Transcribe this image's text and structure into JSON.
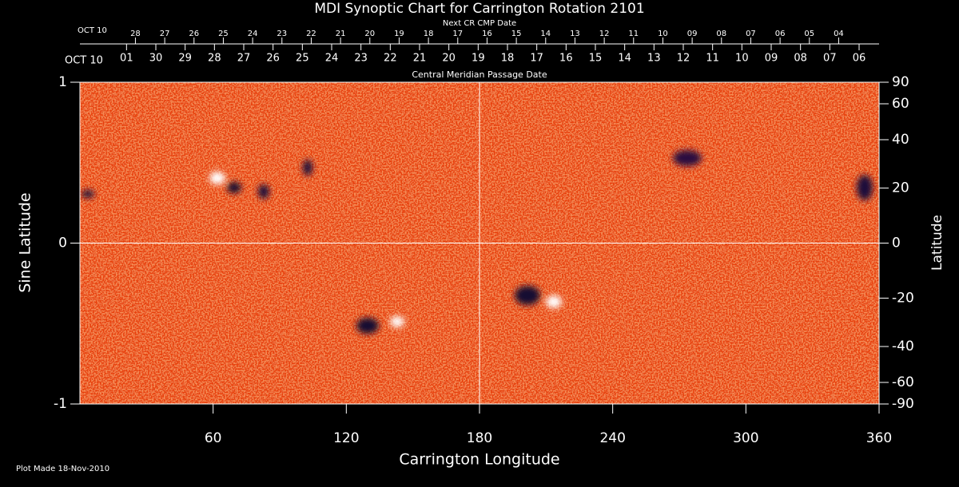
{
  "chart_data": {
    "type": "synoptic-map",
    "title": "MDI Synoptic Chart for Carrington Rotation 2101",
    "xlabel": "Carrington Longitude",
    "ylabel": "Sine Latitude",
    "y2label": "Latitude",
    "footnote": "Plot Made 18-Nov-2010",
    "xlim": [
      0,
      360
    ],
    "xticks": [
      60,
      120,
      180,
      240,
      300,
      360
    ],
    "ylim": [
      -1,
      1
    ],
    "yticks": [
      -1,
      0,
      1
    ],
    "y2lim": [
      -90,
      90
    ],
    "y2scale": "sine",
    "y2ticks": [
      90,
      60,
      40,
      20,
      0,
      -20,
      -40,
      -60,
      -90
    ],
    "grid_lines": {
      "x": [
        180
      ],
      "y": [
        0
      ]
    },
    "top_axes": [
      {
        "title": "Next CR CMP Date",
        "start_label": "OCT 10",
        "color": "#ff5a1e",
        "ticks": [
          {
            "value": 25,
            "label": "28"
          },
          {
            "value": 38.2,
            "label": "27"
          },
          {
            "value": 51.4,
            "label": "26"
          },
          {
            "value": 64.6,
            "label": "25"
          },
          {
            "value": 77.8,
            "label": "24"
          },
          {
            "value": 91,
            "label": "23"
          },
          {
            "value": 104.2,
            "label": "22"
          },
          {
            "value": 117.4,
            "label": "21"
          },
          {
            "value": 130.6,
            "label": "20"
          },
          {
            "value": 143.8,
            "label": "19"
          },
          {
            "value": 157,
            "label": "18"
          },
          {
            "value": 170.2,
            "label": "17"
          },
          {
            "value": 183.4,
            "label": "16"
          },
          {
            "value": 196.6,
            "label": "15"
          },
          {
            "value": 209.8,
            "label": "14"
          },
          {
            "value": 223,
            "label": "13"
          },
          {
            "value": 236.2,
            "label": "12"
          },
          {
            "value": 249.4,
            "label": "11"
          },
          {
            "value": 262.6,
            "label": "10"
          },
          {
            "value": 275.8,
            "label": "09"
          },
          {
            "value": 289,
            "label": "08"
          },
          {
            "value": 302.2,
            "label": "07"
          },
          {
            "value": 315.4,
            "label": "06"
          },
          {
            "value": 328.6,
            "label": "05"
          },
          {
            "value": 341.8,
            "label": "04"
          }
        ]
      },
      {
        "title": "Central Meridian Passage Date",
        "start_label": "OCT 10",
        "color": "#ffffff",
        "ticks": [
          {
            "value": 21,
            "label": "01"
          },
          {
            "value": 34.2,
            "label": "30"
          },
          {
            "value": 47.4,
            "label": "29"
          },
          {
            "value": 60.6,
            "label": "28"
          },
          {
            "value": 73.8,
            "label": "27"
          },
          {
            "value": 87,
            "label": "26"
          },
          {
            "value": 100.2,
            "label": "25"
          },
          {
            "value": 113.4,
            "label": "24"
          },
          {
            "value": 126.6,
            "label": "23"
          },
          {
            "value": 139.8,
            "label": "22"
          },
          {
            "value": 153,
            "label": "21"
          },
          {
            "value": 166.2,
            "label": "20"
          },
          {
            "value": 179.4,
            "label": "19"
          },
          {
            "value": 192.6,
            "label": "18"
          },
          {
            "value": 205.8,
            "label": "17"
          },
          {
            "value": 219,
            "label": "16"
          },
          {
            "value": 232.2,
            "label": "15"
          },
          {
            "value": 245.4,
            "label": "14"
          },
          {
            "value": 258.6,
            "label": "13"
          },
          {
            "value": 271.8,
            "label": "12"
          },
          {
            "value": 285,
            "label": "11"
          },
          {
            "value": 298.2,
            "label": "10"
          },
          {
            "value": 311.4,
            "label": "09"
          },
          {
            "value": 324.6,
            "label": "08"
          },
          {
            "value": 337.8,
            "label": "07"
          },
          {
            "value": 351,
            "label": "06"
          }
        ]
      }
    ]
  }
}
